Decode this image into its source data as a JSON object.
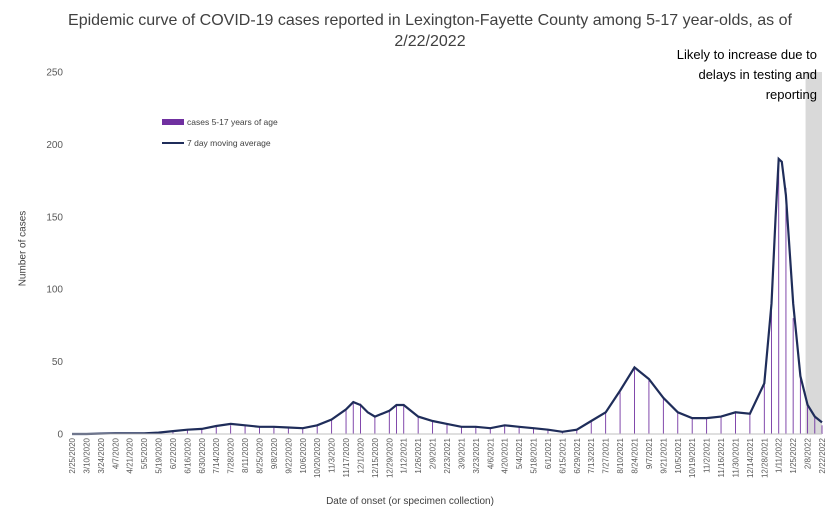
{
  "chart_data": {
    "type": "bar",
    "title": "Epidemic curve of COVID-19 cases reported in Lexington-Fayette County among 5-17 year-olds, as of 2/22/2022",
    "xlabel": "Date of onset (or specimen collection)",
    "ylabel": "Number of cases",
    "ylim": [
      0,
      250
    ],
    "yticks": [
      0,
      50,
      100,
      150,
      200,
      250
    ],
    "xlim": [
      "2020-02-25",
      "2022-02-22"
    ],
    "x_tick_labels": [
      "2/25/2020",
      "3/10/2020",
      "3/24/2020",
      "4/7/2020",
      "4/21/2020",
      "5/5/2020",
      "5/19/2020",
      "6/2/2020",
      "6/16/2020",
      "6/30/2020",
      "7/14/2020",
      "7/28/2020",
      "8/11/2020",
      "8/25/2020",
      "9/8/2020",
      "9/22/2020",
      "10/6/2020",
      "10/20/2020",
      "11/3/2020",
      "11/17/2020",
      "12/1/2020",
      "12/15/2020",
      "12/29/2020",
      "1/12/2021",
      "1/26/2021",
      "2/9/2021",
      "2/23/2021",
      "3/9/2021",
      "3/23/2021",
      "4/6/2021",
      "4/20/2021",
      "5/4/2021",
      "5/18/2021",
      "6/1/2021",
      "6/15/2021",
      "6/29/2021",
      "7/13/2021",
      "7/27/2021",
      "8/10/2021",
      "8/24/2021",
      "9/7/2021",
      "9/21/2021",
      "10/5/2021",
      "10/19/2021",
      "11/2/2021",
      "11/16/2021",
      "11/30/2021",
      "12/14/2021",
      "12/28/2021",
      "1/11/2022",
      "1/25/2022",
      "2/8/2022",
      "2/22/2022"
    ],
    "grid": false,
    "legend_position": "upper-left",
    "annotation": "Likely to increase due to delays in testing and reporting",
    "shaded_period": [
      "2022-02-08",
      "2022-02-22"
    ],
    "series": [
      {
        "name": "cases 5-17 years of age",
        "type": "bar",
        "color": "#7030a0",
        "points": [
          [
            "2020-02-25",
            0
          ],
          [
            "2020-03-10",
            0
          ],
          [
            "2020-03-24",
            1
          ],
          [
            "2020-04-07",
            0
          ],
          [
            "2020-04-21",
            1
          ],
          [
            "2020-05-05",
            0
          ],
          [
            "2020-05-19",
            1
          ],
          [
            "2020-06-02",
            2
          ],
          [
            "2020-06-16",
            3
          ],
          [
            "2020-06-30",
            4
          ],
          [
            "2020-07-14",
            5
          ],
          [
            "2020-07-28",
            6
          ],
          [
            "2020-08-11",
            6
          ],
          [
            "2020-08-25",
            5
          ],
          [
            "2020-09-08",
            5
          ],
          [
            "2020-09-22",
            4
          ],
          [
            "2020-10-06",
            4
          ],
          [
            "2020-10-20",
            6
          ],
          [
            "2020-11-03",
            10
          ],
          [
            "2020-11-17",
            17
          ],
          [
            "2020-11-24",
            22
          ],
          [
            "2020-12-01",
            21
          ],
          [
            "2020-12-15",
            12
          ],
          [
            "2020-12-29",
            16
          ],
          [
            "2021-01-05",
            20
          ],
          [
            "2021-01-12",
            20
          ],
          [
            "2021-01-26",
            12
          ],
          [
            "2021-02-09",
            9
          ],
          [
            "2021-02-23",
            7
          ],
          [
            "2021-03-09",
            5
          ],
          [
            "2021-03-23",
            5
          ],
          [
            "2021-04-06",
            4
          ],
          [
            "2021-04-20",
            6
          ],
          [
            "2021-05-04",
            5
          ],
          [
            "2021-05-18",
            4
          ],
          [
            "2021-06-01",
            3
          ],
          [
            "2021-06-15",
            1
          ],
          [
            "2021-06-29",
            3
          ],
          [
            "2021-07-13",
            9
          ],
          [
            "2021-07-27",
            15
          ],
          [
            "2021-08-10",
            30
          ],
          [
            "2021-08-24",
            45
          ],
          [
            "2021-09-07",
            38
          ],
          [
            "2021-09-21",
            25
          ],
          [
            "2021-10-05",
            15
          ],
          [
            "2021-10-19",
            11
          ],
          [
            "2021-11-02",
            11
          ],
          [
            "2021-11-16",
            12
          ],
          [
            "2021-11-30",
            15
          ],
          [
            "2021-12-14",
            14
          ],
          [
            "2021-12-28",
            35
          ],
          [
            "2022-01-04",
            90
          ],
          [
            "2022-01-11",
            185
          ],
          [
            "2022-01-18",
            170
          ],
          [
            "2022-01-25",
            80
          ],
          [
            "2022-02-01",
            40
          ],
          [
            "2022-02-08",
            20
          ],
          [
            "2022-02-15",
            12
          ],
          [
            "2022-02-22",
            6
          ]
        ]
      },
      {
        "name": "7 day moving average",
        "type": "line",
        "color": "#1f2d5a",
        "points": [
          [
            "2020-02-25",
            0
          ],
          [
            "2020-03-10",
            0
          ],
          [
            "2020-03-24",
            0.3
          ],
          [
            "2020-04-07",
            0.5
          ],
          [
            "2020-04-21",
            0.5
          ],
          [
            "2020-05-05",
            0.5
          ],
          [
            "2020-05-19",
            1
          ],
          [
            "2020-06-02",
            2
          ],
          [
            "2020-06-16",
            3
          ],
          [
            "2020-06-30",
            3.5
          ],
          [
            "2020-07-14",
            5.5
          ],
          [
            "2020-07-28",
            7
          ],
          [
            "2020-08-11",
            6
          ],
          [
            "2020-08-25",
            5
          ],
          [
            "2020-09-08",
            5
          ],
          [
            "2020-09-22",
            4.5
          ],
          [
            "2020-10-06",
            4
          ],
          [
            "2020-10-20",
            6
          ],
          [
            "2020-11-03",
            10
          ],
          [
            "2020-11-17",
            17
          ],
          [
            "2020-11-24",
            22
          ],
          [
            "2020-12-01",
            20
          ],
          [
            "2020-12-08",
            15
          ],
          [
            "2020-12-15",
            12
          ],
          [
            "2020-12-29",
            16
          ],
          [
            "2021-01-05",
            20
          ],
          [
            "2021-01-12",
            20
          ],
          [
            "2021-01-26",
            12
          ],
          [
            "2021-02-09",
            9
          ],
          [
            "2021-02-23",
            7
          ],
          [
            "2021-03-09",
            5
          ],
          [
            "2021-03-23",
            5
          ],
          [
            "2021-04-06",
            4
          ],
          [
            "2021-04-20",
            6
          ],
          [
            "2021-05-04",
            5
          ],
          [
            "2021-05-18",
            4
          ],
          [
            "2021-06-01",
            3
          ],
          [
            "2021-06-15",
            1.5
          ],
          [
            "2021-06-29",
            3
          ],
          [
            "2021-07-13",
            9
          ],
          [
            "2021-07-27",
            15
          ],
          [
            "2021-08-10",
            30
          ],
          [
            "2021-08-24",
            46
          ],
          [
            "2021-09-07",
            38
          ],
          [
            "2021-09-21",
            25
          ],
          [
            "2021-10-05",
            15
          ],
          [
            "2021-10-19",
            11
          ],
          [
            "2021-11-02",
            11
          ],
          [
            "2021-11-16",
            12
          ],
          [
            "2021-11-30",
            15
          ],
          [
            "2021-12-14",
            14
          ],
          [
            "2021-12-28",
            35
          ],
          [
            "2022-01-04",
            90
          ],
          [
            "2022-01-08",
            150
          ],
          [
            "2022-01-11",
            190
          ],
          [
            "2022-01-14",
            188
          ],
          [
            "2022-01-18",
            165
          ],
          [
            "2022-01-25",
            90
          ],
          [
            "2022-02-01",
            40
          ],
          [
            "2022-02-08",
            20
          ],
          [
            "2022-02-15",
            12
          ],
          [
            "2022-02-22",
            8
          ]
        ]
      }
    ]
  }
}
